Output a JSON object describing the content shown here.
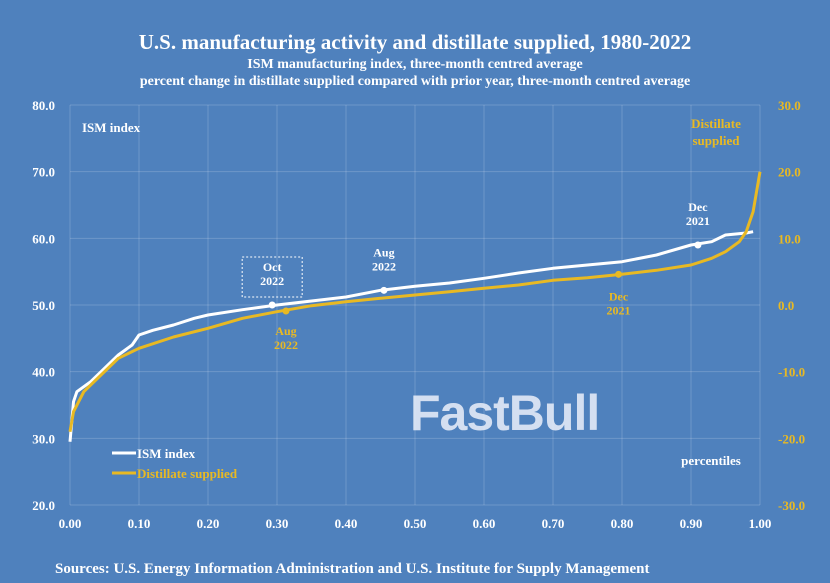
{
  "chart_data": {
    "type": "line",
    "title": "U.S. manufacturing activity and distillate supplied, 1980-2022",
    "subtitle": [
      "ISM manufacturing index, three-month centred average",
      "percent change in distillate supplied compared with prior year, three-month centred average"
    ],
    "xlabel": "percentiles",
    "ylabel_left": "ISM index",
    "ylabel_right": "Distillate supplied",
    "xlim": [
      0,
      1
    ],
    "ylim_left": [
      20,
      80
    ],
    "ylim_right": [
      -30,
      30
    ],
    "x_ticks": [
      "0.00",
      "0.10",
      "0.20",
      "0.30",
      "0.40",
      "0.50",
      "0.60",
      "0.70",
      "0.80",
      "0.90",
      "1.00"
    ],
    "y_left_ticks": [
      "20.0",
      "30.0",
      "40.0",
      "50.0",
      "60.0",
      "70.0",
      "80.0"
    ],
    "y_right_ticks": [
      "-30.0",
      "-20.0",
      "-10.0",
      "0.0",
      "10.0",
      "20.0",
      "30.0"
    ],
    "grid": true,
    "legend_placement": "bottom-left",
    "series": [
      {
        "name": "ISM index",
        "axis": "left",
        "color": "#ffffff",
        "x": [
          0,
          0.005,
          0.01,
          0.03,
          0.05,
          0.07,
          0.09,
          0.1,
          0.12,
          0.15,
          0.18,
          0.2,
          0.25,
          0.3,
          0.35,
          0.4,
          0.45,
          0.5,
          0.55,
          0.6,
          0.65,
          0.7,
          0.75,
          0.8,
          0.85,
          0.9,
          0.93,
          0.95,
          0.98,
          0.99
        ],
        "y": [
          29.5,
          35.5,
          37,
          38.5,
          40.5,
          42.5,
          44,
          45.5,
          46.2,
          47,
          48,
          48.5,
          49.3,
          50,
          50.6,
          51.2,
          52.2,
          52.8,
          53.3,
          54,
          54.8,
          55.5,
          56,
          56.5,
          57.5,
          59,
          59.5,
          60.5,
          60.8,
          61
        ]
      },
      {
        "name": "Distillate supplied",
        "axis": "right",
        "color": "#e8b923",
        "x": [
          0,
          0.005,
          0.02,
          0.04,
          0.07,
          0.1,
          0.15,
          0.2,
          0.25,
          0.3,
          0.35,
          0.4,
          0.45,
          0.5,
          0.55,
          0.6,
          0.65,
          0.7,
          0.75,
          0.8,
          0.85,
          0.9,
          0.93,
          0.95,
          0.97,
          0.98,
          0.99,
          1.0
        ],
        "y": [
          -19,
          -16,
          -13,
          -11,
          -8,
          -6.5,
          -4.8,
          -3.5,
          -2,
          -1,
          -0.1,
          0.5,
          1,
          1.5,
          2,
          2.5,
          3,
          3.7,
          4.1,
          4.6,
          5.2,
          6,
          7,
          8,
          9.5,
          11,
          14,
          20
        ]
      }
    ],
    "annotations": [
      {
        "series": "ISM index",
        "label": [
          "Oct",
          "2022"
        ],
        "x": 0.293,
        "y": 50.0,
        "boxed": true
      },
      {
        "series": "ISM index",
        "label": [
          "Aug",
          "2022"
        ],
        "x": 0.455,
        "y": 52.2
      },
      {
        "series": "ISM index",
        "label": [
          "Dec",
          "2021"
        ],
        "x": 0.91,
        "y": 59.0
      },
      {
        "series": "Distillate supplied",
        "label": [
          "Aug",
          "2022"
        ],
        "x": 0.313,
        "y": -0.9
      },
      {
        "series": "Distillate supplied",
        "label": [
          "Dec",
          "2021"
        ],
        "x": 0.795,
        "y": 4.6
      }
    ]
  },
  "source": "Sources: U.S. Energy Information Administration and U.S. Institute for Supply Management",
  "watermark": "FastBull"
}
